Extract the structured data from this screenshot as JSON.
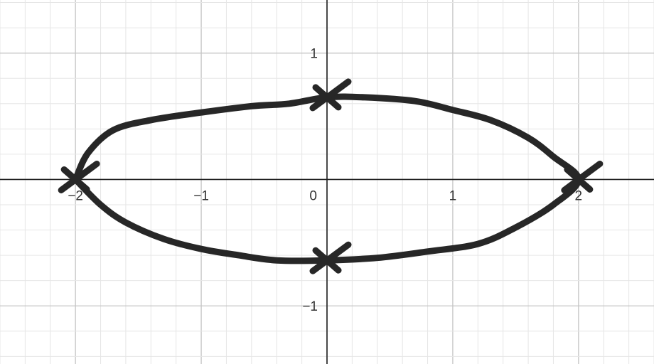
{
  "chart_data": {
    "type": "scatter",
    "title": "",
    "xlabel": "",
    "ylabel": "",
    "xlim": [
      -2.6,
      2.6
    ],
    "ylim": [
      -1.46,
      1.42
    ],
    "grid": true,
    "x_ticks": [
      {
        "value": -2,
        "label": "−2"
      },
      {
        "value": -1,
        "label": "−1"
      },
      {
        "value": 1,
        "label": "1"
      },
      {
        "value": 2,
        "label": "2"
      }
    ],
    "y_ticks": [
      {
        "value": 1,
        "label": "1"
      },
      {
        "value": -1,
        "label": "−1"
      }
    ],
    "origin_label": "0",
    "series": [
      {
        "kind": "sketched-curve",
        "closed": true,
        "points": [
          [
            -2.0,
            0.0
          ],
          [
            -1.9,
            0.21
          ],
          [
            -1.7,
            0.39
          ],
          [
            -1.4,
            0.47
          ],
          [
            -1.0,
            0.53
          ],
          [
            -0.6,
            0.58
          ],
          [
            -0.3,
            0.6
          ],
          [
            0.0,
            0.65
          ],
          [
            0.3,
            0.65
          ],
          [
            0.7,
            0.62
          ],
          [
            1.0,
            0.55
          ],
          [
            1.3,
            0.47
          ],
          [
            1.6,
            0.33
          ],
          [
            1.8,
            0.18
          ],
          [
            2.0,
            0.0
          ],
          [
            1.8,
            -0.2
          ],
          [
            1.5,
            -0.38
          ],
          [
            1.2,
            -0.51
          ],
          [
            0.8,
            -0.57
          ],
          [
            0.4,
            -0.62
          ],
          [
            0.0,
            -0.64
          ],
          [
            -0.4,
            -0.64
          ],
          [
            -0.7,
            -0.6
          ],
          [
            -1.0,
            -0.55
          ],
          [
            -1.3,
            -0.47
          ],
          [
            -1.6,
            -0.34
          ],
          [
            -1.8,
            -0.2
          ],
          [
            -2.0,
            0.0
          ]
        ]
      },
      {
        "kind": "x-markers",
        "points": [
          [
            -2.0,
            0.0
          ],
          [
            0.0,
            0.65
          ],
          [
            2.0,
            0.0
          ],
          [
            0.0,
            -0.64
          ]
        ]
      }
    ]
  }
}
